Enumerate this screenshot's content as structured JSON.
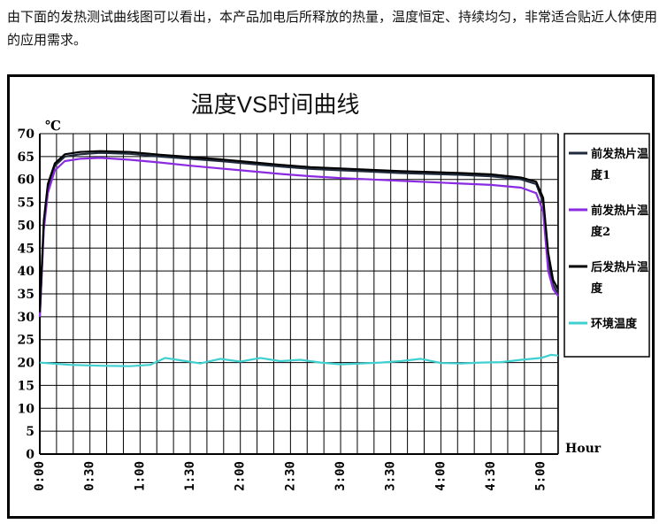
{
  "intro_text": "由下面的发热测试曲线图可以看出，本产品加电后所释放的热量，温度恒定、持续均匀，非常适合贴近人体使用的应用需求。",
  "chart_data": {
    "type": "line",
    "title": "温度VS时间曲线",
    "ylabel": "℃",
    "xlabel": "Hour",
    "ylim": [
      0,
      70
    ],
    "xlim": [
      0,
      5.17
    ],
    "y_ticks": [
      0,
      5,
      10,
      15,
      20,
      25,
      30,
      35,
      40,
      45,
      50,
      55,
      60,
      65,
      70
    ],
    "x_ticks": [
      {
        "value": 0,
        "label": "0:00"
      },
      {
        "value": 0.5,
        "label": "0:30"
      },
      {
        "value": 1,
        "label": "1:00"
      },
      {
        "value": 1.5,
        "label": "1:30"
      },
      {
        "value": 2,
        "label": "2:00"
      },
      {
        "value": 2.5,
        "label": "2:30"
      },
      {
        "value": 3,
        "label": "3:00"
      },
      {
        "value": 3.5,
        "label": "3:30"
      },
      {
        "value": 4,
        "label": "4:00"
      },
      {
        "value": 4.5,
        "label": "4:30"
      },
      {
        "value": 5,
        "label": "5:00"
      }
    ],
    "grid": true,
    "legend": "right",
    "series": [
      {
        "name": "前发热片温度1",
        "color": "#1f2a3c",
        "points": [
          [
            0,
            30
          ],
          [
            0.04,
            50
          ],
          [
            0.08,
            58
          ],
          [
            0.15,
            63
          ],
          [
            0.25,
            65
          ],
          [
            0.4,
            65.5
          ],
          [
            0.6,
            65.8
          ],
          [
            0.9,
            65.6
          ],
          [
            1.2,
            65
          ],
          [
            1.5,
            64.5
          ],
          [
            1.8,
            64
          ],
          [
            2.1,
            63.4
          ],
          [
            2.4,
            62.8
          ],
          [
            2.7,
            62.3
          ],
          [
            3.0,
            62
          ],
          [
            3.3,
            61.7
          ],
          [
            3.6,
            61.4
          ],
          [
            3.9,
            61.2
          ],
          [
            4.2,
            61
          ],
          [
            4.5,
            60.7
          ],
          [
            4.8,
            60
          ],
          [
            4.95,
            59
          ],
          [
            5.02,
            55
          ],
          [
            5.07,
            42
          ],
          [
            5.12,
            37
          ],
          [
            5.17,
            35
          ]
        ]
      },
      {
        "name": "前发热片温度2",
        "color": "#8a2be2",
        "points": [
          [
            0,
            30
          ],
          [
            0.04,
            49
          ],
          [
            0.08,
            57
          ],
          [
            0.15,
            62
          ],
          [
            0.25,
            64
          ],
          [
            0.4,
            64.5
          ],
          [
            0.6,
            64.7
          ],
          [
            0.9,
            64.3
          ],
          [
            1.2,
            63.7
          ],
          [
            1.5,
            63
          ],
          [
            1.8,
            62.4
          ],
          [
            2.1,
            61.8
          ],
          [
            2.4,
            61.2
          ],
          [
            2.7,
            60.7
          ],
          [
            3.0,
            60.3
          ],
          [
            3.3,
            60
          ],
          [
            3.6,
            59.7
          ],
          [
            3.9,
            59.4
          ],
          [
            4.2,
            59.1
          ],
          [
            4.5,
            58.8
          ],
          [
            4.8,
            58.2
          ],
          [
            4.95,
            57
          ],
          [
            5.02,
            53
          ],
          [
            5.07,
            40
          ],
          [
            5.12,
            36
          ],
          [
            5.17,
            34.5
          ]
        ]
      },
      {
        "name": "后发热片温度",
        "color": "#000000",
        "points": [
          [
            0,
            31
          ],
          [
            0.04,
            51
          ],
          [
            0.08,
            59
          ],
          [
            0.15,
            63.5
          ],
          [
            0.25,
            65.5
          ],
          [
            0.4,
            66
          ],
          [
            0.6,
            66.2
          ],
          [
            0.9,
            66
          ],
          [
            1.2,
            65.4
          ],
          [
            1.5,
            64.9
          ],
          [
            1.8,
            64.4
          ],
          [
            2.1,
            63.8
          ],
          [
            2.4,
            63.2
          ],
          [
            2.7,
            62.7
          ],
          [
            3.0,
            62.4
          ],
          [
            3.3,
            62.1
          ],
          [
            3.6,
            61.8
          ],
          [
            3.9,
            61.6
          ],
          [
            4.2,
            61.4
          ],
          [
            4.5,
            61.1
          ],
          [
            4.8,
            60.4
          ],
          [
            4.95,
            59.5
          ],
          [
            5.02,
            56
          ],
          [
            5.07,
            44
          ],
          [
            5.12,
            38
          ],
          [
            5.17,
            36
          ]
        ]
      },
      {
        "name": "环境温度",
        "color": "#40d0d0",
        "points": [
          [
            0,
            20
          ],
          [
            0.3,
            19.5
          ],
          [
            0.6,
            19.3
          ],
          [
            0.9,
            19.2
          ],
          [
            1.1,
            19.5
          ],
          [
            1.25,
            21
          ],
          [
            1.4,
            20.5
          ],
          [
            1.6,
            19.8
          ],
          [
            1.8,
            20.8
          ],
          [
            2.0,
            20.2
          ],
          [
            2.2,
            21
          ],
          [
            2.4,
            20.3
          ],
          [
            2.6,
            20.6
          ],
          [
            2.8,
            20
          ],
          [
            3.0,
            19.6
          ],
          [
            3.2,
            19.8
          ],
          [
            3.4,
            20
          ],
          [
            3.6,
            20.3
          ],
          [
            3.8,
            20.8
          ],
          [
            4.0,
            19.9
          ],
          [
            4.2,
            19.8
          ],
          [
            4.4,
            20
          ],
          [
            4.6,
            20.1
          ],
          [
            4.8,
            20.6
          ],
          [
            5.0,
            21
          ],
          [
            5.1,
            21.7
          ],
          [
            5.17,
            21.5
          ]
        ]
      }
    ]
  }
}
